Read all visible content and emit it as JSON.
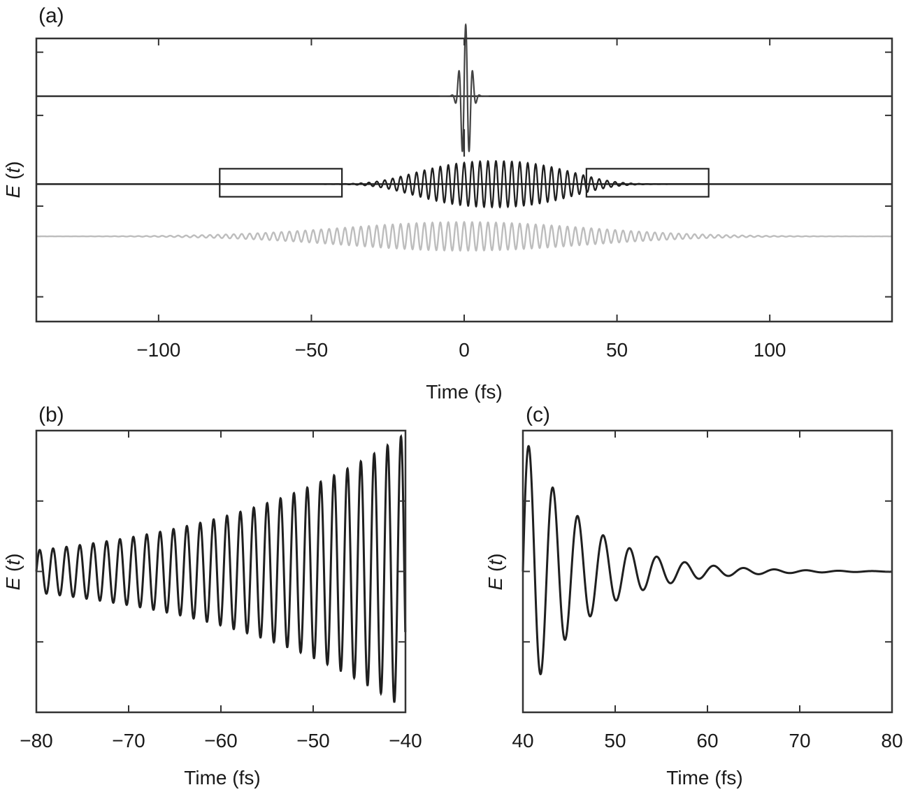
{
  "chart_data": [
    {
      "panel": "(a)",
      "type": "line",
      "xlabel": "Time (fs)",
      "ylabel": "E (t)",
      "ylabel_parts": [
        "E",
        "t"
      ],
      "xlim": [
        -140,
        140
      ],
      "xticks": [
        -100,
        -50,
        0,
        50,
        100
      ],
      "xtick_labels": [
        "−100",
        "−50",
        "0",
        "50",
        "100"
      ],
      "yticks": [
        -2.1,
        -0.45,
        1.2,
        2.35
      ],
      "ylim": [
        -2.55,
        2.6
      ],
      "series": [
        {
          "key": "short-pulse",
          "baseline": 1.55,
          "amplitude": 1.3,
          "center": 0.5,
          "width": 2.2,
          "period": 2.3,
          "color": "#444444",
          "range": [
            -8,
            8
          ]
        },
        {
          "key": "chirped-pulse",
          "baseline": -0.05,
          "amplitude": 0.42,
          "center": 10,
          "width": 33,
          "period": 2.6,
          "color": "#1f1f1f",
          "range": [
            -140,
            140
          ]
        },
        {
          "key": "long-pulse",
          "baseline": -1.0,
          "amplitude": 0.26,
          "center": 0,
          "width": 55,
          "period": 2.6,
          "color": "#bdbdbd",
          "range": [
            -140,
            140
          ]
        }
      ],
      "zoom_boxes": [
        {
          "x": [
            -80,
            -40
          ],
          "y": [
            -0.28,
            0.23
          ]
        },
        {
          "x": [
            40,
            80
          ],
          "y": [
            -0.28,
            0.23
          ]
        }
      ]
    },
    {
      "panel": "(b)",
      "type": "line",
      "xlabel": "Time (fs)",
      "ylabel": "E (t)",
      "ylabel_parts": [
        "E",
        "t"
      ],
      "xlim": [
        -80,
        -40
      ],
      "xticks": [
        -80,
        -70,
        -60,
        -50,
        -40
      ],
      "xtick_labels": [
        "−80",
        "−70",
        "−60",
        "−50",
        "−40"
      ],
      "yticks": [
        -0.5,
        0,
        0.5
      ],
      "ylim": [
        -1,
        1
      ],
      "series": [
        {
          "key": "leading-edge",
          "color": "#1f1f1f",
          "period": 1.45,
          "phase_at": -80,
          "amp_start": 0.15,
          "amp_end": 0.98
        }
      ]
    },
    {
      "panel": "(c)",
      "type": "line",
      "xlabel": "Time (fs)",
      "ylabel": "E (t)",
      "ylabel_parts": [
        "E",
        "t"
      ],
      "xlim": [
        40,
        80
      ],
      "xticks": [
        40,
        50,
        60,
        70,
        80
      ],
      "xtick_labels": [
        "40",
        "50",
        "60",
        "70",
        "80"
      ],
      "yticks": [
        -0.5,
        0,
        0.5
      ],
      "ylim": [
        -1,
        1
      ],
      "series": [
        {
          "key": "trailing-edge",
          "color": "#1f1f1f",
          "start": 40,
          "period": 2.55,
          "period_growth": 0.012,
          "amp_start": 0.98,
          "decay": 6.5
        }
      ]
    }
  ]
}
